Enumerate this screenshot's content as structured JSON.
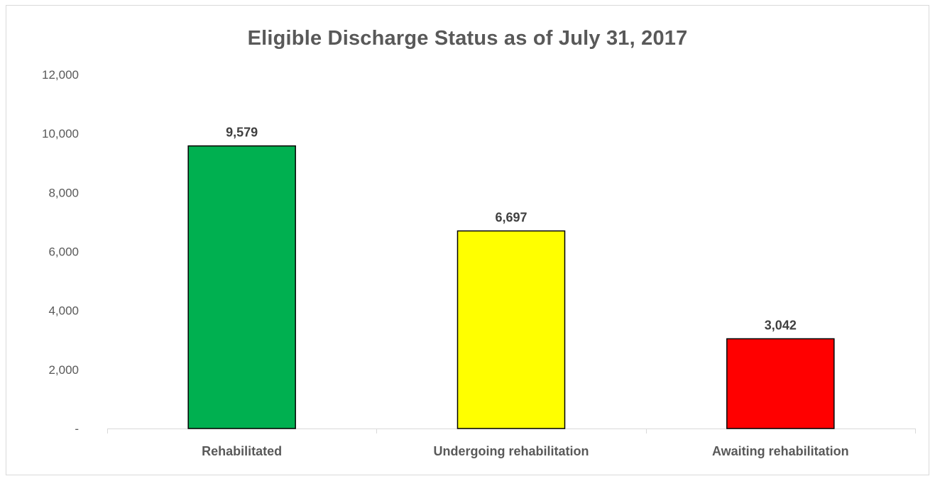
{
  "chart_data": {
    "type": "bar",
    "title": "Eligible Discharge Status as of July 31, 2017",
    "categories": [
      "Rehabilitated",
      "Undergoing rehabilitation",
      "Awaiting rehabilitation"
    ],
    "values": [
      9579,
      6697,
      3042
    ],
    "data_labels": [
      "9,579",
      "6,697",
      "3,042"
    ],
    "bar_colors": [
      "#00B050",
      "#FFFF00",
      "#FF0000"
    ],
    "bar_outline_color": "#000000",
    "ylim": [
      0,
      12000
    ],
    "y_ticks": [
      0,
      2000,
      4000,
      6000,
      8000,
      10000,
      12000
    ],
    "y_tick_labels": [
      "-",
      "2,000",
      "4,000",
      "6,000",
      "8,000",
      "10,000",
      "12,000"
    ],
    "xlabel": "",
    "ylabel": "",
    "grid": false,
    "legend": "none"
  }
}
